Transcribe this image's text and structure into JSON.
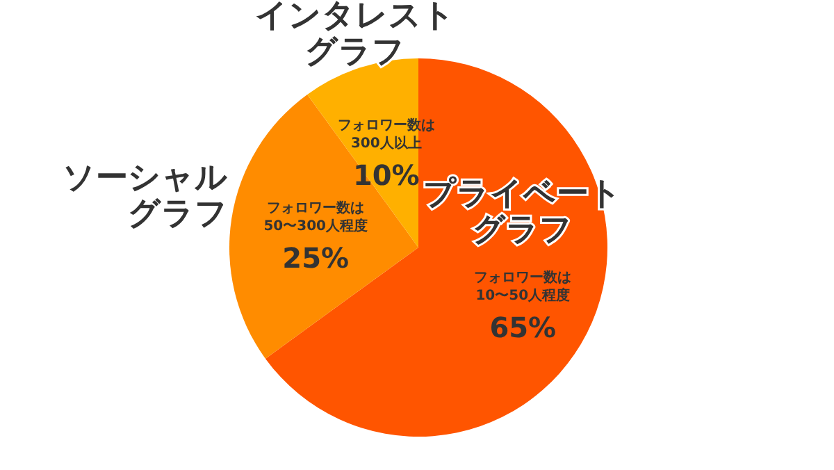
{
  "chart_data": {
    "type": "pie",
    "categories": [
      "プライベートグラフ",
      "ソーシャルグラフ",
      "インタレストグラフ"
    ],
    "values": [
      65,
      25,
      10
    ],
    "colors": [
      "#ff5500",
      "#ff8c00",
      "#ffb000"
    ],
    "value_labels": [
      "65%",
      "25%",
      "10%"
    ],
    "annotations": [
      "フォロワー数は 10〜50人程度",
      "フォロワー数は 50〜300人程度",
      "フォロワー数は 300人以上"
    ]
  }
}
